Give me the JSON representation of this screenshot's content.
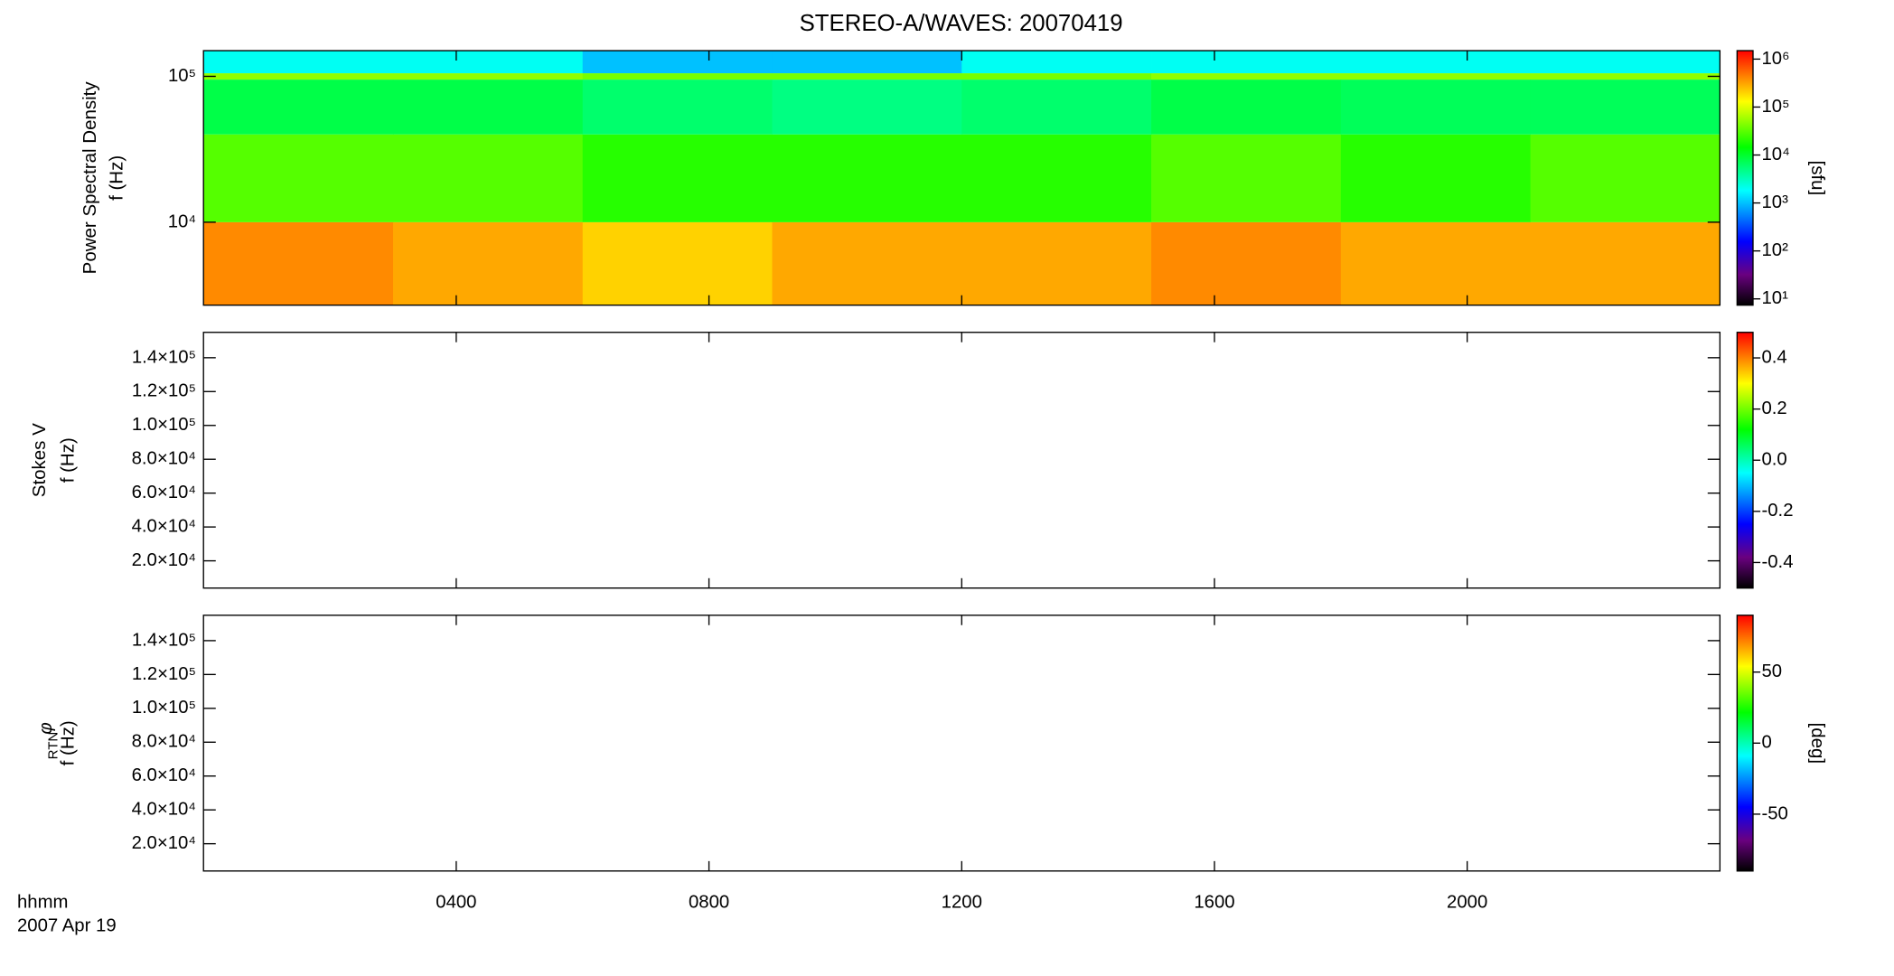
{
  "chart_data": [
    {
      "type": "heatmap",
      "title": "STEREO-A/WAVES: 20070419",
      "ylabel": "Power Spectral Density",
      "ylabel2": "f (Hz)",
      "ylog": true,
      "ylim": [
        2700,
        150000
      ],
      "yticks": [
        {
          "value": 10000,
          "label": "10⁴"
        },
        {
          "value": 100000,
          "label": "10⁵"
        }
      ],
      "x_bins": [
        0,
        3,
        6,
        9,
        12,
        15,
        18,
        21,
        24
      ],
      "y_bins": [
        2700,
        10000,
        40000,
        95000,
        105000,
        150000
      ],
      "values": [
        [
          400000,
          300000,
          200000,
          300000,
          300000,
          400000,
          300000,
          300000
        ],
        [
          30000,
          30000,
          20000,
          20000,
          20000,
          30000,
          20000,
          30000
        ],
        [
          8000,
          8000,
          6000,
          5000,
          6000,
          8000,
          7000,
          7000
        ],
        [
          50000,
          50000,
          40000,
          40000,
          40000,
          50000,
          50000,
          50000
        ],
        [
          2000,
          2000,
          1000,
          1000,
          2000,
          2000,
          2000,
          2000
        ]
      ],
      "colorbar": {
        "log": true,
        "clim": [
          7.4,
          1500000
        ],
        "label": "[sfu]",
        "ticks": [
          {
            "value": 1000000,
            "label": "10⁶"
          },
          {
            "value": 100000,
            "label": "10⁵"
          },
          {
            "value": 10000,
            "label": "10⁴"
          },
          {
            "value": 1000,
            "label": "10³"
          },
          {
            "value": 100,
            "label": "10²"
          },
          {
            "value": 10,
            "label": "10¹"
          }
        ]
      }
    },
    {
      "type": "heatmap",
      "ylabel": "Stokes V",
      "ylabel2": "f (Hz)",
      "ylog": false,
      "ylim": [
        3900,
        155000
      ],
      "yticks": [
        {
          "value": 140000,
          "label": "1.4×10⁵"
        },
        {
          "value": 120000,
          "label": "1.2×10⁵"
        },
        {
          "value": 100000,
          "label": "1.0×10⁵"
        },
        {
          "value": 80000,
          "label": "8.0×10⁴"
        },
        {
          "value": 60000,
          "label": "6.0×10⁴"
        },
        {
          "value": 40000,
          "label": "4.0×10⁴"
        },
        {
          "value": 20000,
          "label": "2.0×10⁴"
        }
      ],
      "colorbar": {
        "log": false,
        "clim": [
          -0.5,
          0.5
        ],
        "ticks": [
          0.4,
          0.2,
          {
            "value": 0,
            "label": "0.0"
          },
          -0.2,
          -0.4
        ]
      }
    },
    {
      "type": "heatmap",
      "ylabel": "φ",
      "ylabel_sub": "RTN",
      "ylabel2": "f (Hz)",
      "ylog": false,
      "ylim": [
        3900,
        155000
      ],
      "yticks": [
        {
          "value": 140000,
          "label": "1.4×10⁵"
        },
        {
          "value": 120000,
          "label": "1.2×10⁵"
        },
        {
          "value": 100000,
          "label": "1.0×10⁵"
        },
        {
          "value": 80000,
          "label": "8.0×10⁴"
        },
        {
          "value": 60000,
          "label": "6.0×10⁴"
        },
        {
          "value": 40000,
          "label": "4.0×10⁴"
        },
        {
          "value": 20000,
          "label": "2.0×10⁴"
        }
      ],
      "colorbar": {
        "log": false,
        "clim": [
          -90,
          90
        ],
        "label": "[deg]",
        "ticks": [
          50,
          0,
          -50
        ]
      },
      "xlim": [
        0,
        24
      ],
      "xticks": [
        {
          "value": 4,
          "label": "0400"
        },
        {
          "value": 8,
          "label": "0800"
        },
        {
          "value": 12,
          "label": "1200"
        },
        {
          "value": 16,
          "label": "1600"
        },
        {
          "value": 20,
          "label": "2000"
        }
      ],
      "xlabel": "hhmm",
      "xlabel2": "2007 Apr 19"
    }
  ]
}
